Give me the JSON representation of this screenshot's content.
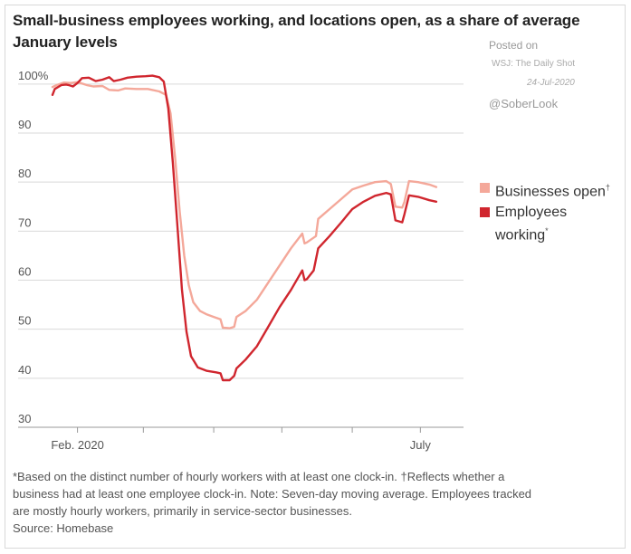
{
  "header": {
    "title": "Small-business employees working, and locations open, as a share of average January levels",
    "posted": "Posted on",
    "outlet": "WSJ: The Daily Shot",
    "date": "24-Jul-2020",
    "handle": "@SoberLook"
  },
  "legend": {
    "businesses_open": "Businesses open",
    "businesses_open_mark": "†",
    "employees_working_line1": "Employees",
    "employees_working_line2": "working",
    "employees_working_mark": "*"
  },
  "footnote": {
    "line1": "*Based on the distinct number of hourly workers with at least one clock-in. †Reflects whether a",
    "line2": "business had at least one employee clock-in. Note: Seven-day moving average. Employees tracked",
    "line3": "are mostly hourly workers, primarily in service-sector businesses.",
    "source": "Source: Homebase"
  },
  "colors": {
    "businesses_open": "#f4a89a",
    "employees_working": "#d0262e",
    "grid": "#d9d9d9",
    "axis_text": "#555555"
  },
  "chart_data": {
    "type": "line",
    "title": "Small-business employees working, and locations open, as a share of average January levels",
    "xlabel": "",
    "ylabel": "",
    "ylim": [
      30,
      102
    ],
    "yticks": [
      {
        "value": 100,
        "label": "100%"
      },
      {
        "value": 90,
        "label": "90"
      },
      {
        "value": 80,
        "label": "80"
      },
      {
        "value": 70,
        "label": "70"
      },
      {
        "value": 60,
        "label": "60"
      },
      {
        "value": 50,
        "label": "50"
      },
      {
        "value": 40,
        "label": "40"
      },
      {
        "value": 30,
        "label": "30"
      }
    ],
    "xlim": [
      "2020-01-21",
      "2020-07-20"
    ],
    "xticks": [
      {
        "date": "2020-02-01",
        "label": "Feb. 2020"
      },
      {
        "date": "2020-03-01",
        "label": ""
      },
      {
        "date": "2020-04-01",
        "label": ""
      },
      {
        "date": "2020-05-01",
        "label": ""
      },
      {
        "date": "2020-06-01",
        "label": ""
      },
      {
        "date": "2020-07-01",
        "label": "July"
      }
    ],
    "grid": true,
    "legend_position": "right",
    "series": [
      {
        "name": "Businesses open",
        "color": "#f4a89a",
        "points": [
          [
            "2020-01-21",
            99.4
          ],
          [
            "2020-01-23",
            99.8
          ],
          [
            "2020-01-26",
            100.3
          ],
          [
            "2020-01-29",
            100.2
          ],
          [
            "2020-02-01",
            100.4
          ],
          [
            "2020-02-05",
            99.8
          ],
          [
            "2020-02-08",
            99.5
          ],
          [
            "2020-02-12",
            99.6
          ],
          [
            "2020-02-15",
            98.8
          ],
          [
            "2020-02-19",
            98.7
          ],
          [
            "2020-02-22",
            99.1
          ],
          [
            "2020-02-27",
            99.0
          ],
          [
            "2020-03-03",
            99.0
          ],
          [
            "2020-03-08",
            98.5
          ],
          [
            "2020-03-11",
            97.8
          ],
          [
            "2020-03-13",
            94.0
          ],
          [
            "2020-03-15",
            85.0
          ],
          [
            "2020-03-17",
            74.0
          ],
          [
            "2020-03-19",
            65.0
          ],
          [
            "2020-03-21",
            59.0
          ],
          [
            "2020-03-23",
            55.5
          ],
          [
            "2020-03-26",
            53.7
          ],
          [
            "2020-03-29",
            53.0
          ],
          [
            "2020-04-01",
            52.5
          ],
          [
            "2020-04-04",
            52.0
          ],
          [
            "2020-04-05",
            50.3
          ],
          [
            "2020-04-08",
            50.2
          ],
          [
            "2020-04-10",
            50.5
          ],
          [
            "2020-04-11",
            52.5
          ],
          [
            "2020-04-15",
            53.7
          ],
          [
            "2020-04-20",
            56.0
          ],
          [
            "2020-04-25",
            59.5
          ],
          [
            "2020-04-30",
            63.0
          ],
          [
            "2020-05-05",
            66.5
          ],
          [
            "2020-05-10",
            69.5
          ],
          [
            "2020-05-11",
            67.5
          ],
          [
            "2020-05-12",
            67.7
          ],
          [
            "2020-05-16",
            69.0
          ],
          [
            "2020-05-17",
            72.5
          ],
          [
            "2020-05-22",
            74.5
          ],
          [
            "2020-05-27",
            76.5
          ],
          [
            "2020-06-01",
            78.5
          ],
          [
            "2020-06-06",
            79.3
          ],
          [
            "2020-06-11",
            80.0
          ],
          [
            "2020-06-16",
            80.2
          ],
          [
            "2020-06-18",
            79.6
          ],
          [
            "2020-06-20",
            75.0
          ],
          [
            "2020-06-23",
            74.8
          ],
          [
            "2020-06-24",
            76.0
          ],
          [
            "2020-06-26",
            80.2
          ],
          [
            "2020-06-30",
            80.0
          ],
          [
            "2020-07-05",
            79.5
          ],
          [
            "2020-07-08",
            79.0
          ]
        ]
      },
      {
        "name": "Employees working",
        "color": "#d0262e",
        "points": [
          [
            "2020-01-21",
            97.8
          ],
          [
            "2020-01-22",
            99.0
          ],
          [
            "2020-01-25",
            99.8
          ],
          [
            "2020-01-27",
            99.9
          ],
          [
            "2020-01-28",
            99.8
          ],
          [
            "2020-01-30",
            99.5
          ],
          [
            "2020-02-01",
            100.2
          ],
          [
            "2020-02-03",
            101.2
          ],
          [
            "2020-02-06",
            101.3
          ],
          [
            "2020-02-09",
            100.6
          ],
          [
            "2020-02-12",
            100.9
          ],
          [
            "2020-02-15",
            101.4
          ],
          [
            "2020-02-17",
            100.6
          ],
          [
            "2020-02-20",
            100.9
          ],
          [
            "2020-02-23",
            101.3
          ],
          [
            "2020-02-27",
            101.5
          ],
          [
            "2020-03-02",
            101.6
          ],
          [
            "2020-03-05",
            101.7
          ],
          [
            "2020-03-08",
            101.4
          ],
          [
            "2020-03-10",
            100.5
          ],
          [
            "2020-03-12",
            95.0
          ],
          [
            "2020-03-14",
            84.0
          ],
          [
            "2020-03-16",
            71.0
          ],
          [
            "2020-03-18",
            58.0
          ],
          [
            "2020-03-20",
            49.5
          ],
          [
            "2020-03-22",
            44.5
          ],
          [
            "2020-03-25",
            42.2
          ],
          [
            "2020-03-29",
            41.5
          ],
          [
            "2020-04-02",
            41.2
          ],
          [
            "2020-04-04",
            41.0
          ],
          [
            "2020-04-05",
            39.6
          ],
          [
            "2020-04-08",
            39.6
          ],
          [
            "2020-04-10",
            40.5
          ],
          [
            "2020-04-11",
            42.0
          ],
          [
            "2020-04-15",
            43.8
          ],
          [
            "2020-04-20",
            46.5
          ],
          [
            "2020-04-25",
            50.5
          ],
          [
            "2020-04-30",
            54.5
          ],
          [
            "2020-05-05",
            58.0
          ],
          [
            "2020-05-10",
            62.0
          ],
          [
            "2020-05-11",
            60.0
          ],
          [
            "2020-05-12",
            60.2
          ],
          [
            "2020-05-15",
            62.0
          ],
          [
            "2020-05-17",
            66.5
          ],
          [
            "2020-05-22",
            69.0
          ],
          [
            "2020-05-27",
            71.7
          ],
          [
            "2020-06-01",
            74.5
          ],
          [
            "2020-06-06",
            76.0
          ],
          [
            "2020-06-11",
            77.2
          ],
          [
            "2020-06-16",
            77.8
          ],
          [
            "2020-06-18",
            77.5
          ],
          [
            "2020-06-20",
            72.2
          ],
          [
            "2020-06-23",
            71.8
          ],
          [
            "2020-06-24",
            73.5
          ],
          [
            "2020-06-26",
            77.3
          ],
          [
            "2020-06-30",
            77.0
          ],
          [
            "2020-07-05",
            76.3
          ],
          [
            "2020-07-08",
            76.0
          ]
        ]
      }
    ]
  }
}
